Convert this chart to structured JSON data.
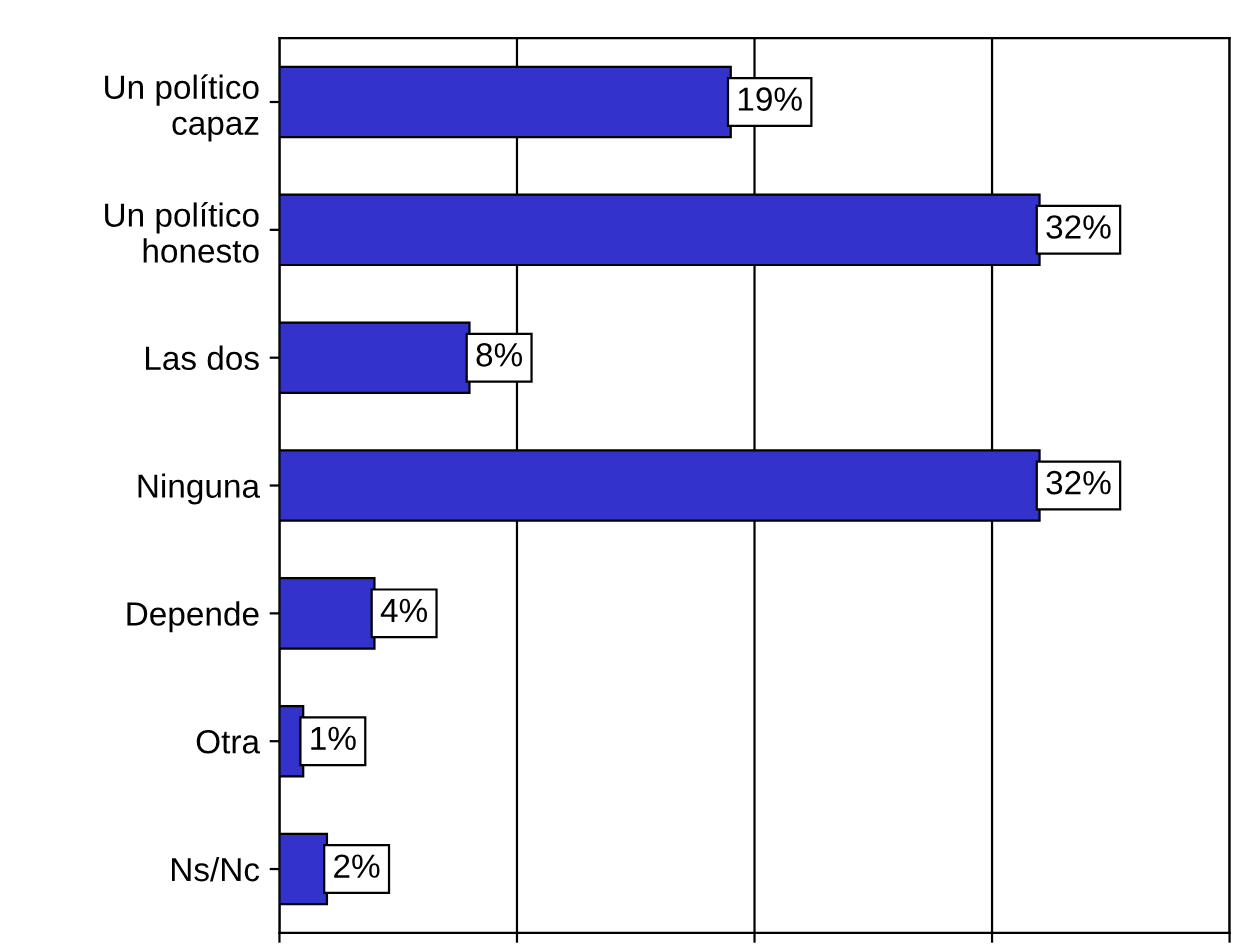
{
  "chart_data": {
    "type": "bar",
    "orientation": "horizontal",
    "categories": [
      "Un político\ncapaz",
      "Un político\nhonesto",
      "Las dos",
      "Ninguna",
      "Depende",
      "Otra",
      "Ns/Nc"
    ],
    "values": [
      19,
      32,
      8,
      32,
      4,
      1,
      2
    ],
    "value_labels": [
      "19%",
      "32%",
      "8%",
      "32%",
      "4%",
      "1%",
      "2%"
    ],
    "color": "#3333cc",
    "xlim": [
      0,
      40
    ],
    "xticks": [
      {
        "value": 0,
        "label": null
      },
      {
        "value": 10,
        "label": null
      },
      {
        "value": 20,
        "label": null
      },
      {
        "value": 30,
        "label": null
      },
      {
        "value": 40,
        "label": null
      }
    ],
    "grid": "x"
  }
}
